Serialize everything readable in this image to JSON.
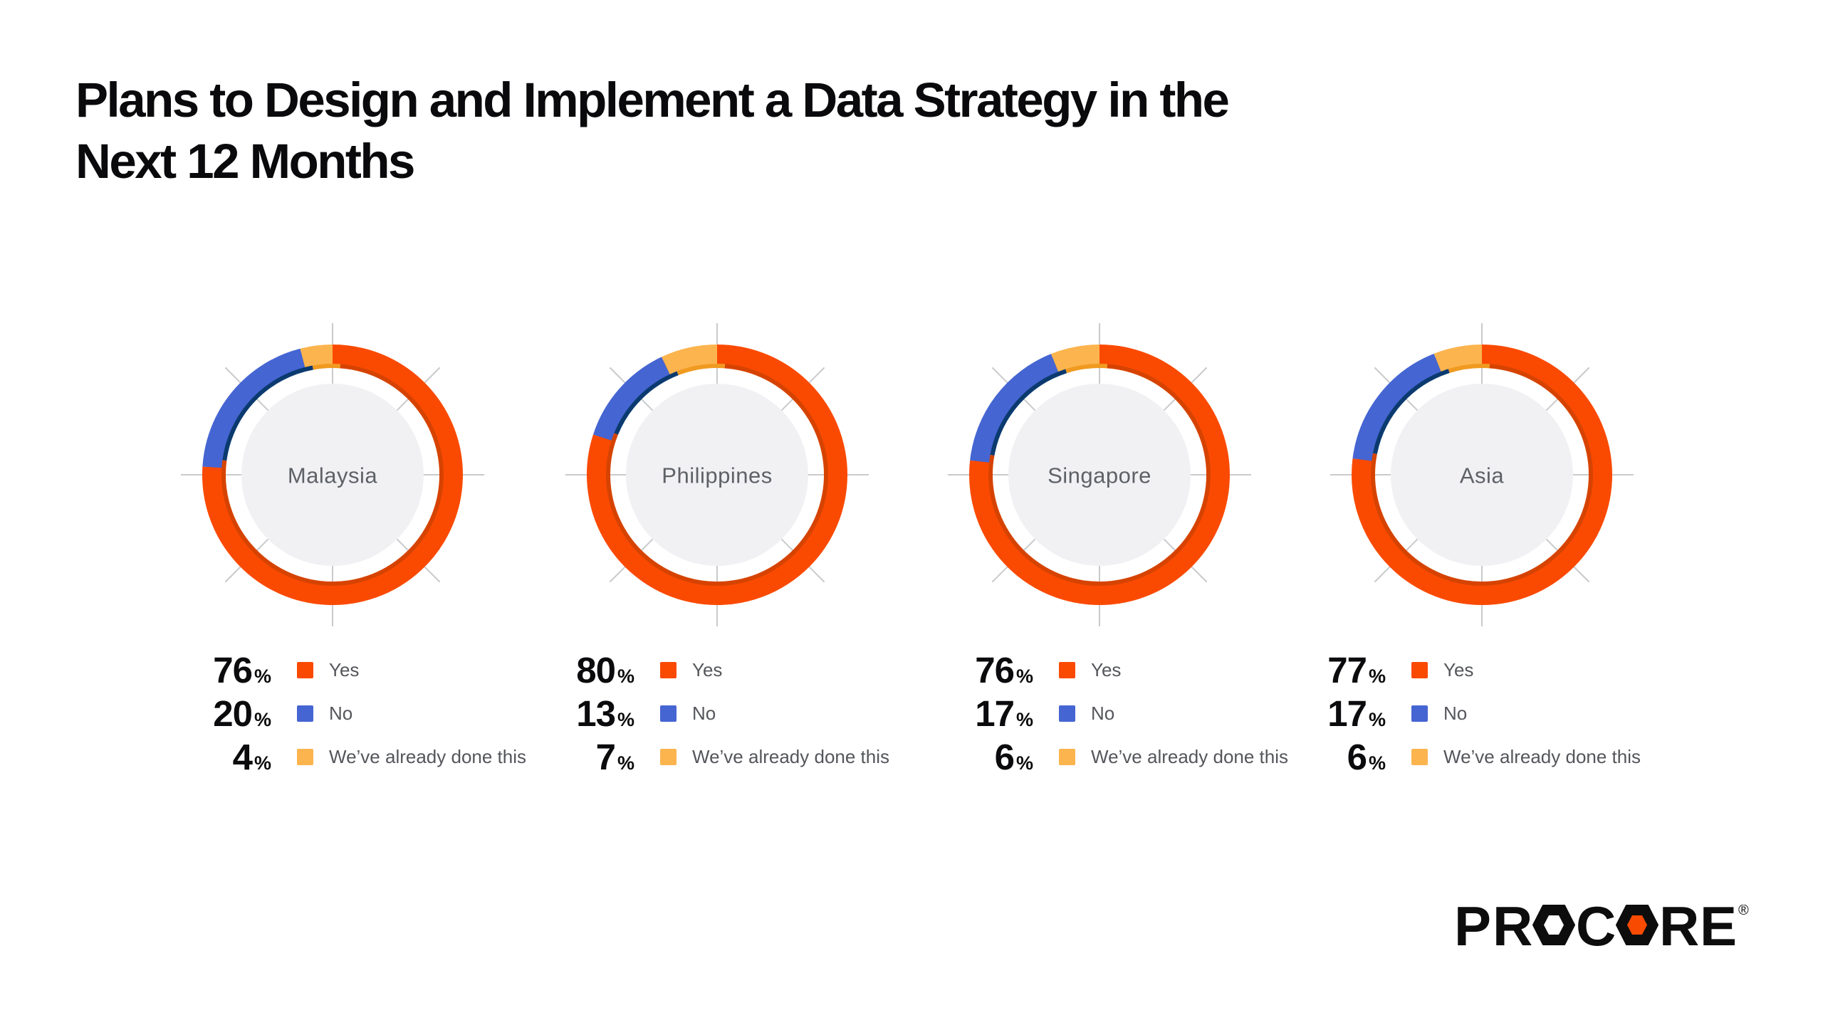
{
  "title": "Plans to Design and Implement a Data Strategy in the Next 12 Months",
  "title_lines": [
    "Plans to Design and Implement a Data Strategy in the",
    "Next 12 Months"
  ],
  "legend": {
    "labels": [
      "Yes",
      "No",
      "We’ve already done this"
    ],
    "suffix": "%"
  },
  "colors": {
    "yes": "#FA4A02",
    "no": "#4565D2",
    "done": "#FCB44E",
    "yes_shadow": "#D64301",
    "no_shadow": "#0B3A6F",
    "done_shadow": "#F09A20",
    "center_circle": "#F1F1F4",
    "grid": "#C9CACB",
    "center_text": "#5E6166",
    "legend_text": "#54565B",
    "value_text": "#0B0B0D",
    "title_text": "#0A0A0C",
    "logo_black": "#0D0D0D",
    "logo_accent": "#F94A02"
  },
  "chart_data": [
    {
      "type": "pie",
      "title": "Malaysia",
      "categories": [
        "Yes",
        "No",
        "We’ve already done this"
      ],
      "values": [
        76,
        20,
        4
      ],
      "unit": "%",
      "legend_position": "bottom-left"
    },
    {
      "type": "pie",
      "title": "Philippines",
      "categories": [
        "Yes",
        "No",
        "We’ve already done this"
      ],
      "values": [
        80,
        13,
        7
      ],
      "unit": "%",
      "legend_position": "bottom-left"
    },
    {
      "type": "pie",
      "title": "Singapore",
      "categories": [
        "Yes",
        "No",
        "We’ve already done this"
      ],
      "values": [
        76,
        17,
        6
      ],
      "unit": "%",
      "legend_position": "bottom-left"
    },
    {
      "type": "pie",
      "title": "Asia",
      "categories": [
        "Yes",
        "No",
        "We’ve already done this"
      ],
      "values": [
        77,
        17,
        6
      ],
      "unit": "%",
      "legend_position": "bottom-left"
    }
  ],
  "logo": {
    "text": "PROCORE",
    "registered": "®"
  }
}
